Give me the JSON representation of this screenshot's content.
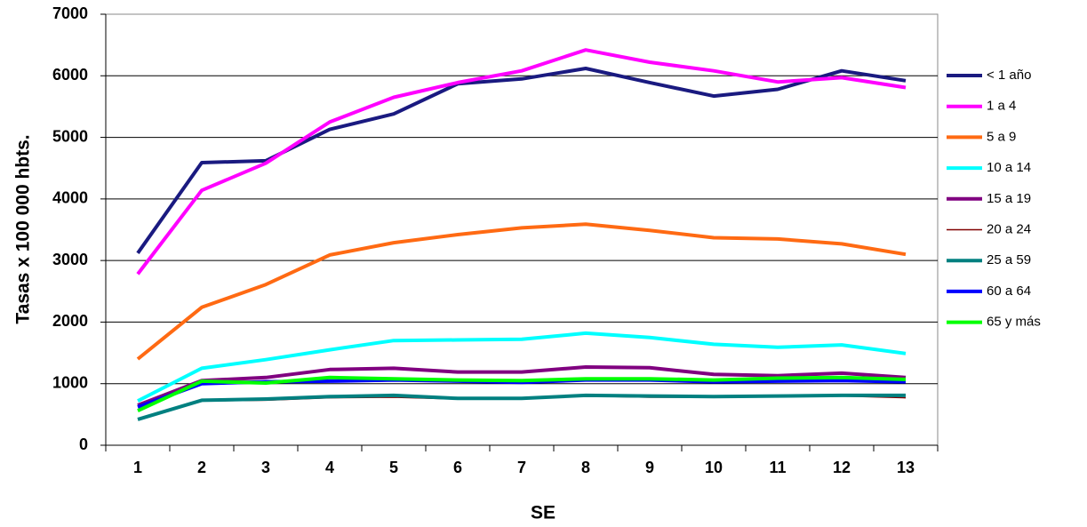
{
  "chart_data": {
    "type": "line",
    "x_label": "SE",
    "y_label": "Tasas x 100 000 hbts.",
    "categories": [
      "1",
      "2",
      "3",
      "4",
      "5",
      "6",
      "7",
      "8",
      "9",
      "10",
      "11",
      "12",
      "13"
    ],
    "ylim": [
      0,
      7000
    ],
    "yticks": [
      0,
      1000,
      2000,
      3000,
      4000,
      5000,
      6000,
      7000
    ],
    "grid": true,
    "legend": "right",
    "series": [
      {
        "name": "< 1 año",
        "color": "#1a1a80",
        "width": 4,
        "values": [
          3120,
          4590,
          4620,
          5130,
          5380,
          5870,
          5950,
          6120,
          5890,
          5670,
          5780,
          6080,
          5920
        ]
      },
      {
        "name": "1 a 4",
        "color": "#ff00ff",
        "width": 4,
        "values": [
          2780,
          4140,
          4580,
          5250,
          5650,
          5890,
          6080,
          6420,
          6220,
          6080,
          5900,
          5970,
          5810
        ]
      },
      {
        "name": "5 a 9",
        "color": "#ff6a13",
        "width": 4,
        "values": [
          1400,
          2240,
          2610,
          3090,
          3290,
          3420,
          3530,
          3590,
          3490,
          3370,
          3350,
          3270,
          3100
        ]
      },
      {
        "name": "10 a 14",
        "color": "#00ffff",
        "width": 4,
        "values": [
          720,
          1250,
          1390,
          1550,
          1700,
          1710,
          1720,
          1820,
          1750,
          1640,
          1590,
          1630,
          1490
        ]
      },
      {
        "name": "15 a 19",
        "color": "#800080",
        "width": 4,
        "values": [
          650,
          1050,
          1100,
          1230,
          1250,
          1190,
          1190,
          1270,
          1260,
          1150,
          1130,
          1170,
          1100
        ]
      },
      {
        "name": "20 a 24",
        "color": "#800000",
        "width": 1.5,
        "values": [
          430,
          720,
          730,
          770,
          780,
          750,
          760,
          800,
          780,
          780,
          790,
          800,
          770
        ]
      },
      {
        "name": "25 a 59",
        "color": "#008080",
        "width": 4,
        "values": [
          420,
          730,
          750,
          790,
          810,
          760,
          760,
          810,
          800,
          790,
          800,
          810,
          810
        ]
      },
      {
        "name": "60 a 64",
        "color": "#0000ff",
        "width": 4,
        "values": [
          620,
          1000,
          1030,
          1040,
          1060,
          1040,
          1020,
          1060,
          1060,
          1030,
          1040,
          1050,
          1030
        ]
      },
      {
        "name": "65 y más",
        "color": "#00ff00",
        "width": 4,
        "values": [
          560,
          1040,
          1010,
          1100,
          1080,
          1060,
          1050,
          1080,
          1080,
          1060,
          1090,
          1100,
          1070
        ]
      }
    ]
  }
}
